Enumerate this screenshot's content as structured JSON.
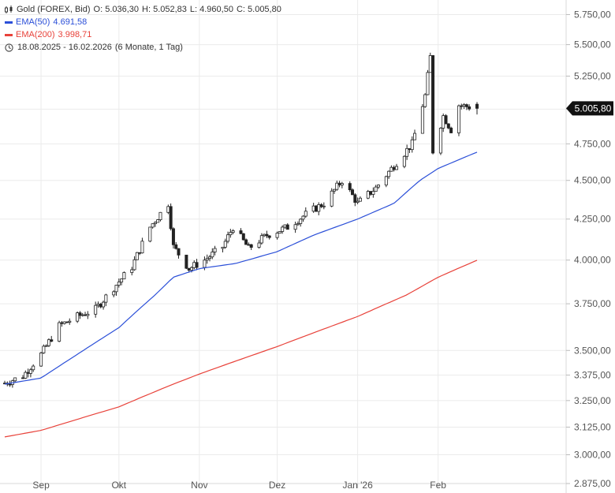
{
  "legend": {
    "instrument": "Gold (FOREX, Bid)",
    "ohlc": {
      "o": "O: 5.036,30",
      "h": "H: 5.052,83",
      "l": "L: 4.960,50",
      "c": "C: 5.005,80"
    },
    "ema50": {
      "label": "EMA(50)",
      "value": "4.691,58",
      "color": "#2b4fd8"
    },
    "ema200": {
      "label": "EMA(200)",
      "value": "3.998,71",
      "color": "#e8423a"
    },
    "range": "18.08.2025 - 16.02.2026",
    "period": "(6 Monate, 1 Tag)"
  },
  "last_price_label": "5.005,80",
  "chart_data": {
    "type": "candlestick",
    "y_scale": "log",
    "ylim": [
      2875,
      5875
    ],
    "grid": true,
    "y_ticks": [
      {
        "value": 2875,
        "label": "2.875,00"
      },
      {
        "value": 3000,
        "label": "3.000,00"
      },
      {
        "value": 3125,
        "label": "3.125,00"
      },
      {
        "value": 3250,
        "label": "3.250,00"
      },
      {
        "value": 3375,
        "label": "3.375,00"
      },
      {
        "value": 3500,
        "label": "3.500,00"
      },
      {
        "value": 3750,
        "label": "3.750,00"
      },
      {
        "value": 4000,
        "label": "4.000,00"
      },
      {
        "value": 4250,
        "label": "4.250,00"
      },
      {
        "value": 4500,
        "label": "4.500,00"
      },
      {
        "value": 4750,
        "label": "4.750,00"
      },
      {
        "value": 5000,
        "label": "5.000,00"
      },
      {
        "value": 5250,
        "label": "5.250,00"
      },
      {
        "value": 5500,
        "label": "5.500,00"
      },
      {
        "value": 5750,
        "label": "5.750,00"
      }
    ],
    "x_range": [
      "2025-08-18",
      "2026-02-16"
    ],
    "x_ticks": [
      {
        "date": "2025-09-01",
        "label": "Sep"
      },
      {
        "date": "2025-10-01",
        "label": "Okt"
      },
      {
        "date": "2025-11-01",
        "label": "Nov"
      },
      {
        "date": "2025-12-01",
        "label": "Dez"
      },
      {
        "date": "2026-01-01",
        "label": "Jan '26"
      },
      {
        "date": "2026-02-01",
        "label": "Feb"
      }
    ],
    "close_path": [
      [
        "2025-08-18",
        3335
      ],
      [
        "2025-08-25",
        3370
      ],
      [
        "2025-09-01",
        3480
      ],
      [
        "2025-09-08",
        3630
      ],
      [
        "2025-09-15",
        3680
      ],
      [
        "2025-09-22",
        3720
      ],
      [
        "2025-09-29",
        3840
      ],
      [
        "2025-10-06",
        3960
      ],
      [
        "2025-10-13",
        4200
      ],
      [
        "2025-10-20",
        4350
      ],
      [
        "2025-10-22",
        4080
      ],
      [
        "2025-10-28",
        3950
      ],
      [
        "2025-11-03",
        4000
      ],
      [
        "2025-11-10",
        4080
      ],
      [
        "2025-11-14",
        4200
      ],
      [
        "2025-11-20",
        4070
      ],
      [
        "2025-11-27",
        4150
      ],
      [
        "2025-12-05",
        4200
      ],
      [
        "2025-12-12",
        4280
      ],
      [
        "2025-12-19",
        4350
      ],
      [
        "2025-12-26",
        4500
      ],
      [
        "2026-01-01",
        4350
      ],
      [
        "2026-01-08",
        4450
      ],
      [
        "2026-01-15",
        4600
      ],
      [
        "2026-01-22",
        4750
      ],
      [
        "2026-01-27",
        5100
      ],
      [
        "2026-01-29",
        5400
      ],
      [
        "2026-01-30",
        4700
      ],
      [
        "2026-02-03",
        4950
      ],
      [
        "2026-02-06",
        4850
      ],
      [
        "2026-02-09",
        5030
      ],
      [
        "2026-02-16",
        5005
      ]
    ],
    "ema50_path": [
      [
        "2025-08-18",
        3330
      ],
      [
        "2025-09-01",
        3360
      ],
      [
        "2025-09-15",
        3480
      ],
      [
        "2025-10-01",
        3620
      ],
      [
        "2025-10-15",
        3800
      ],
      [
        "2025-10-22",
        3900
      ],
      [
        "2025-11-01",
        3950
      ],
      [
        "2025-11-15",
        3980
      ],
      [
        "2025-12-01",
        4050
      ],
      [
        "2025-12-15",
        4150
      ],
      [
        "2026-01-01",
        4250
      ],
      [
        "2026-01-15",
        4350
      ],
      [
        "2026-01-25",
        4500
      ],
      [
        "2026-02-01",
        4580
      ],
      [
        "2026-02-16",
        4692
      ]
    ],
    "ema200_path": [
      [
        "2025-08-18",
        3080
      ],
      [
        "2025-09-01",
        3110
      ],
      [
        "2025-10-01",
        3220
      ],
      [
        "2025-10-20",
        3320
      ],
      [
        "2025-11-01",
        3380
      ],
      [
        "2025-12-01",
        3520
      ],
      [
        "2026-01-01",
        3680
      ],
      [
        "2026-01-20",
        3800
      ],
      [
        "2026-02-01",
        3900
      ],
      [
        "2026-02-16",
        3999
      ]
    ],
    "last": {
      "open": 5036.3,
      "high": 5052.83,
      "low": 4960.5,
      "close": 5005.8
    }
  }
}
